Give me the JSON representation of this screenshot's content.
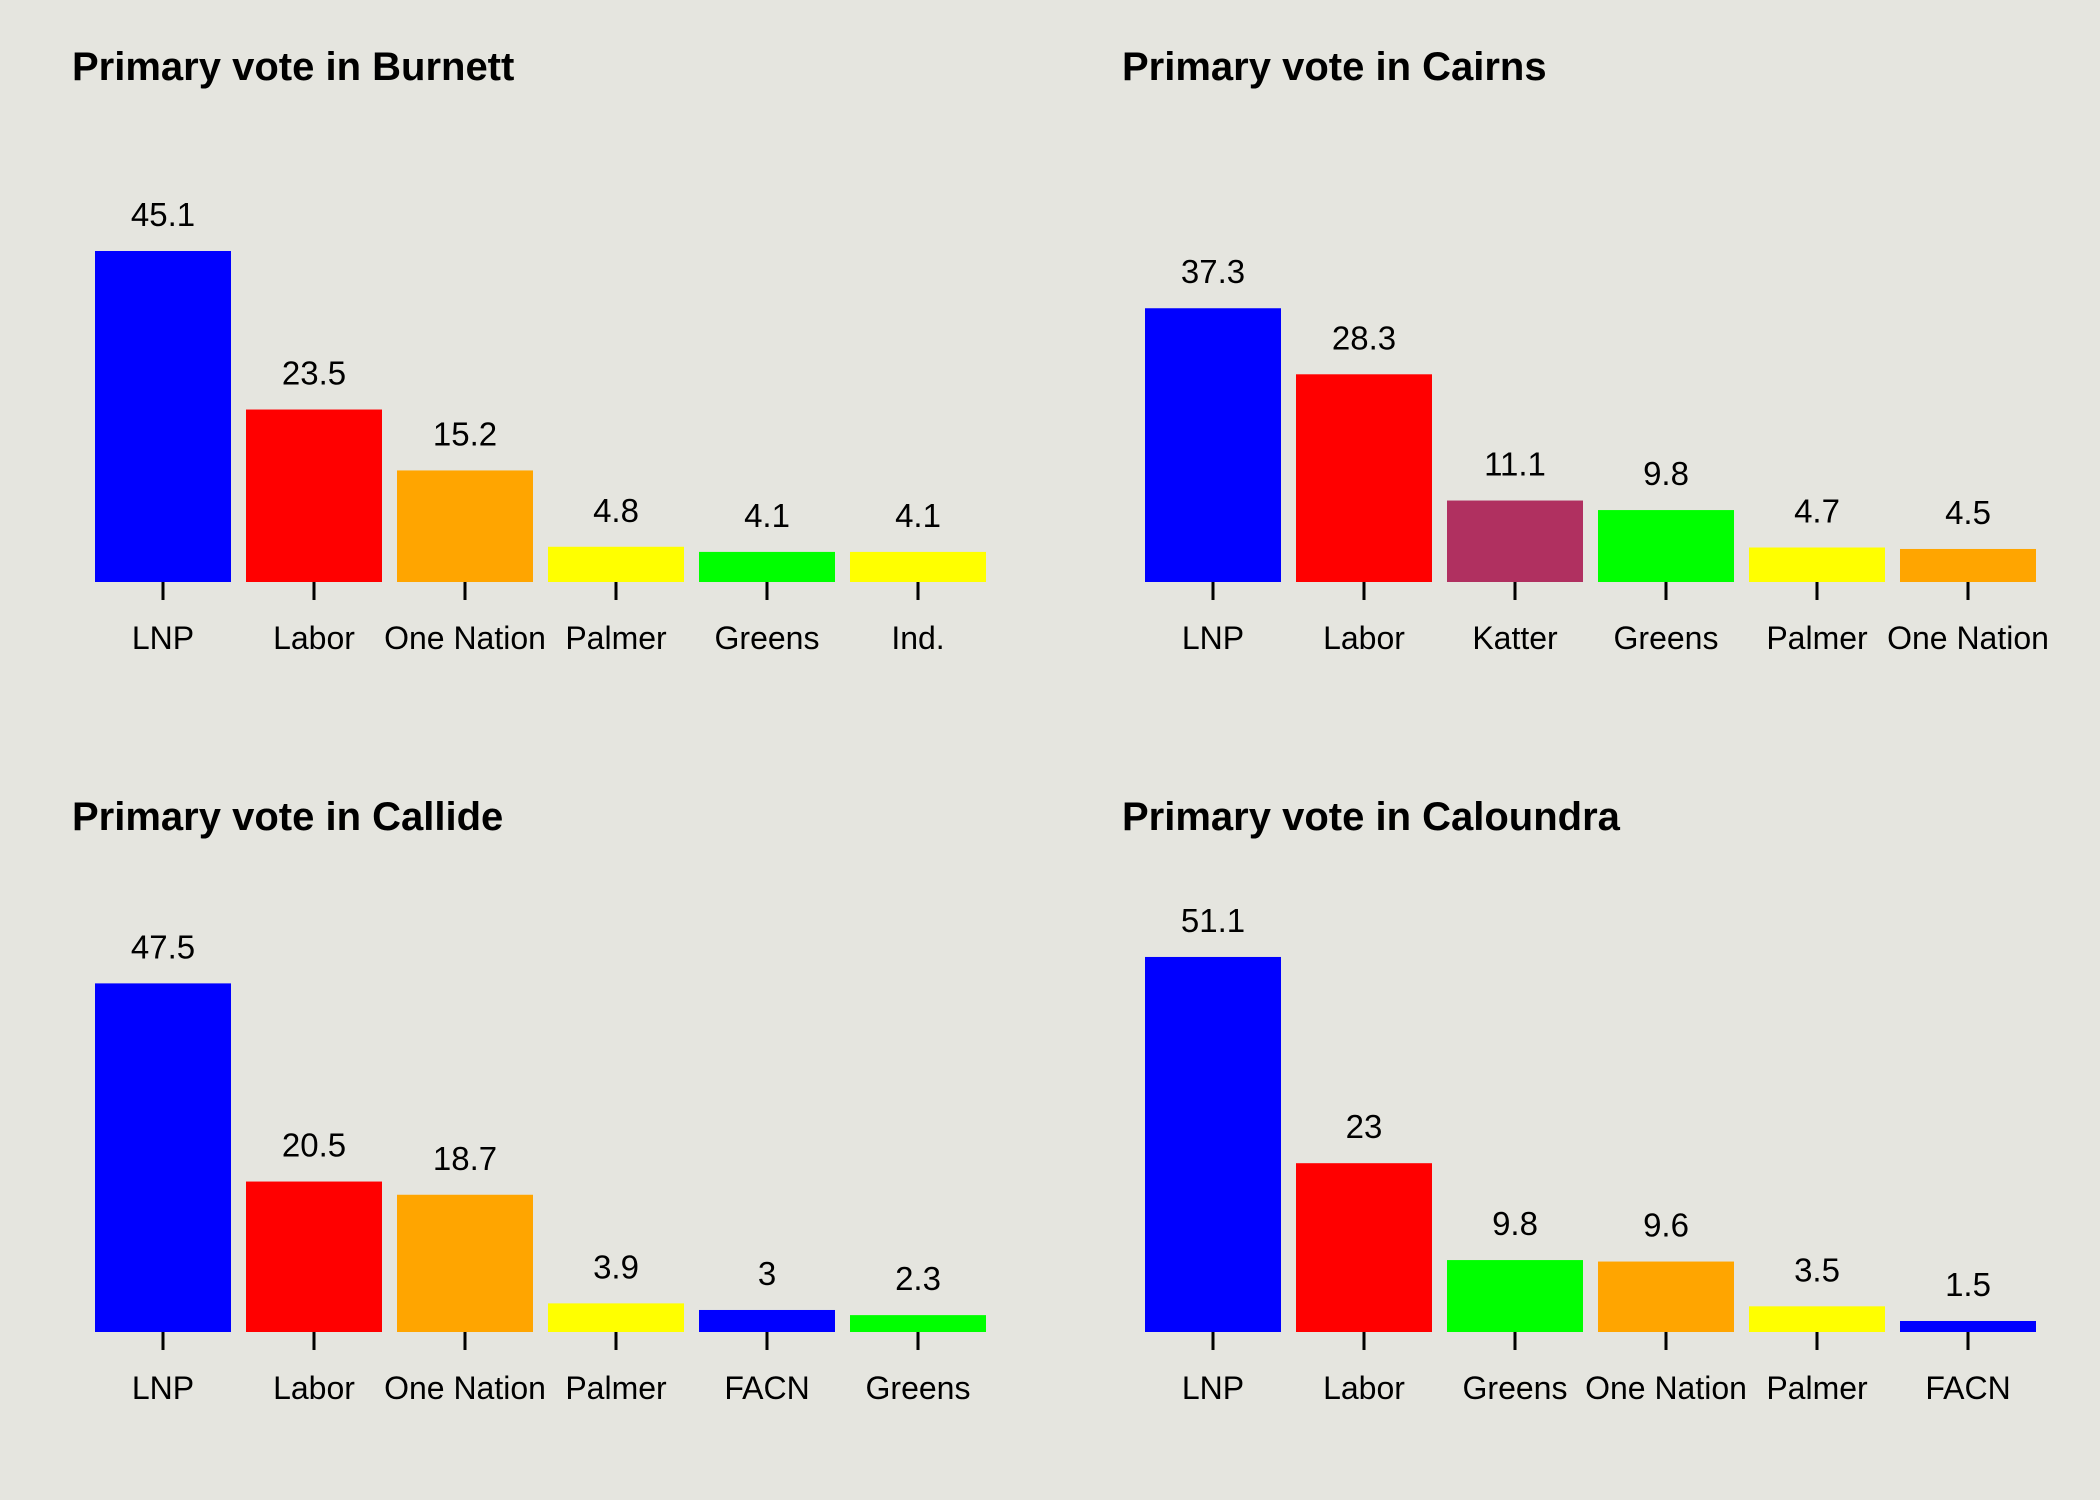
{
  "chart_data": [
    {
      "type": "bar",
      "title": "Primary vote in Burnett",
      "categories": [
        "LNP",
        "Labor",
        "One Nation",
        "Palmer",
        "Greens",
        "Ind."
      ],
      "values": [
        45.1,
        23.5,
        15.2,
        4.8,
        4.1,
        4.1
      ],
      "colors": [
        "#0000ff",
        "#ff0000",
        "#ffa500",
        "#ffff00",
        "#00ff00",
        "#ffff00"
      ],
      "xlabel": "",
      "ylabel": "",
      "ylim": [
        0,
        56
      ],
      "grid": false
    },
    {
      "type": "bar",
      "title": "Primary vote in Cairns",
      "categories": [
        "LNP",
        "Labor",
        "Katter",
        "Greens",
        "Palmer",
        "One Nation"
      ],
      "values": [
        37.3,
        28.3,
        11.1,
        9.8,
        4.7,
        4.5
      ],
      "colors": [
        "#0000ff",
        "#ff0000",
        "#b03060",
        "#00ff00",
        "#ffff00",
        "#ffa500"
      ],
      "xlabel": "",
      "ylabel": "",
      "ylim": [
        0,
        56
      ],
      "grid": false
    },
    {
      "type": "bar",
      "title": "Primary vote in Callide",
      "categories": [
        "LNP",
        "Labor",
        "One Nation",
        "Palmer",
        "FACN",
        "Greens"
      ],
      "values": [
        47.5,
        20.5,
        18.7,
        3.9,
        3,
        2.3
      ],
      "colors": [
        "#0000ff",
        "#ff0000",
        "#ffa500",
        "#ffff00",
        "#0000ff",
        "#00ff00"
      ],
      "xlabel": "",
      "ylabel": "",
      "ylim": [
        0,
        56
      ],
      "grid": false
    },
    {
      "type": "bar",
      "title": "Primary vote in Caloundra",
      "categories": [
        "LNP",
        "Labor",
        "Greens",
        "One Nation",
        "Palmer",
        "FACN"
      ],
      "values": [
        51.1,
        23,
        9.8,
        9.6,
        3.5,
        1.5
      ],
      "colors": [
        "#0000ff",
        "#ff0000",
        "#00ff00",
        "#ffa500",
        "#ffff00",
        "#0000ff"
      ],
      "xlabel": "",
      "ylabel": "",
      "ylim": [
        0,
        56
      ],
      "grid": false
    }
  ]
}
